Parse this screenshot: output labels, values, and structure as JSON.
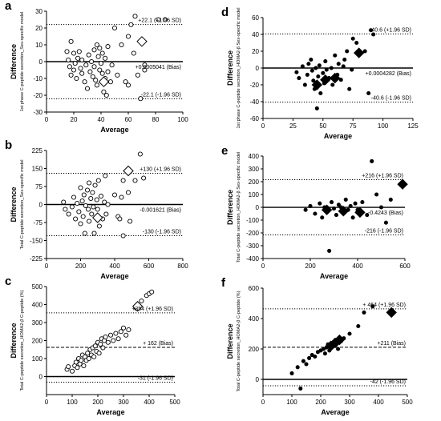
{
  "chart_data": [
    {
      "panel": "a",
      "type": "scatter",
      "xlabel": "Average",
      "ylabel_main": "Difference",
      "ylabel_sub": "1st phase C-peptide secretion_Sex-specific model",
      "xlim": [
        0,
        100
      ],
      "ylim": [
        -30,
        30
      ],
      "xticks": [
        "0",
        "20",
        "40",
        "60",
        "80",
        "100"
      ],
      "yticks": [
        "-30",
        "-20",
        "-10",
        "0",
        "10",
        "20",
        "30"
      ],
      "xtick_values": [
        0,
        20,
        40,
        60,
        80,
        100
      ],
      "ytick_values": [
        -30,
        -20,
        -10,
        0,
        10,
        20,
        30
      ],
      "marker": "open",
      "ref_lines": [
        {
          "y": 22.1,
          "style": "dotted",
          "label": "+22.1 (+1.96 SD)"
        },
        {
          "y": 0.0005041,
          "style": "solid",
          "label": "+0.0005041 (Bias)"
        },
        {
          "y": -22.1,
          "style": "dotted",
          "label": "-22.1 (-1.96 SD)"
        }
      ],
      "points": [
        [
          15,
          6
        ],
        [
          16,
          1
        ],
        [
          17,
          -3
        ],
        [
          18,
          -8
        ],
        [
          18,
          12
        ],
        [
          20,
          5
        ],
        [
          20,
          -5
        ],
        [
          21,
          -1
        ],
        [
          22,
          -10
        ],
        [
          23,
          2
        ],
        [
          24,
          6
        ],
        [
          25,
          -4
        ],
        [
          26,
          -7
        ],
        [
          26,
          1
        ],
        [
          28,
          -12
        ],
        [
          29,
          -2
        ],
        [
          30,
          -16
        ],
        [
          31,
          4
        ],
        [
          32,
          -6
        ],
        [
          33,
          0
        ],
        [
          34,
          -9
        ],
        [
          35,
          7
        ],
        [
          35,
          -3
        ],
        [
          36,
          -11
        ],
        [
          37,
          10
        ],
        [
          37,
          -14
        ],
        [
          38,
          3
        ],
        [
          39,
          -5
        ],
        [
          39,
          8
        ],
        [
          40,
          -1
        ],
        [
          41,
          -7
        ],
        [
          41,
          5
        ],
        [
          42,
          -18
        ],
        [
          43,
          -10
        ],
        [
          44,
          -20
        ],
        [
          43,
          2
        ],
        [
          45,
          9
        ],
        [
          45,
          -6
        ],
        [
          47,
          -12
        ],
        [
          48,
          -2
        ],
        [
          50,
          20
        ],
        [
          52,
          -8
        ],
        [
          55,
          10
        ],
        [
          58,
          -12
        ],
        [
          60,
          -14
        ],
        [
          60,
          15
        ],
        [
          62,
          22
        ],
        [
          64,
          5
        ],
        [
          65,
          27
        ],
        [
          67,
          -8
        ],
        [
          69,
          -22
        ],
        [
          72,
          -5
        ],
        [
          72,
          -2
        ],
        [
          82,
          25
        ],
        [
          87,
          25
        ]
      ],
      "highlights": [
        [
          42,
          -12
        ],
        [
          70,
          12
        ]
      ]
    },
    {
      "panel": "b",
      "type": "scatter",
      "xlabel": "Average",
      "ylabel_main": "Difference",
      "ylabel_sub": "Total C-peptide secretion_Sex-specific model",
      "xlim": [
        0,
        800
      ],
      "ylim": [
        -225,
        225
      ],
      "xticks": [
        "0",
        "200",
        "400",
        "600",
        "800"
      ],
      "yticks": [
        "-225",
        "-150",
        "-75",
        "0",
        "75",
        "150",
        "225"
      ],
      "xtick_values": [
        0,
        200,
        400,
        600,
        800
      ],
      "ytick_values": [
        -225,
        -150,
        -75,
        0,
        75,
        150,
        225
      ],
      "marker": "open",
      "ref_lines": [
        {
          "y": 130,
          "style": "dotted",
          "label": "+130 (+1.96 SD)"
        },
        {
          "y": -0.001621,
          "style": "solid",
          "label": "-0.001621 (Bias)"
        },
        {
          "y": -130,
          "style": "dotted",
          "label": "-130 (-1.96 SD)"
        }
      ],
      "points": [
        [
          100,
          10
        ],
        [
          110,
          -20
        ],
        [
          130,
          -40
        ],
        [
          150,
          -10
        ],
        [
          160,
          30
        ],
        [
          170,
          -60
        ],
        [
          180,
          5
        ],
        [
          190,
          -30
        ],
        [
          200,
          70
        ],
        [
          200,
          -80
        ],
        [
          210,
          15
        ],
        [
          215,
          -50
        ],
        [
          220,
          40
        ],
        [
          225,
          -120
        ],
        [
          230,
          -5
        ],
        [
          240,
          60
        ],
        [
          245,
          -20
        ],
        [
          250,
          90
        ],
        [
          250,
          -70
        ],
        [
          260,
          25
        ],
        [
          265,
          -40
        ],
        [
          270,
          50
        ],
        [
          275,
          -10
        ],
        [
          280,
          -120
        ],
        [
          285,
          80
        ],
        [
          290,
          -55
        ],
        [
          295,
          20
        ],
        [
          300,
          -20
        ],
        [
          305,
          100
        ],
        [
          310,
          -90
        ],
        [
          320,
          35
        ],
        [
          330,
          -60
        ],
        [
          340,
          10
        ],
        [
          345,
          120
        ],
        [
          350,
          -40
        ],
        [
          360,
          0
        ],
        [
          400,
          40
        ],
        [
          420,
          -50
        ],
        [
          430,
          -60
        ],
        [
          440,
          30
        ],
        [
          450,
          100
        ],
        [
          480,
          50
        ],
        [
          490,
          -70
        ],
        [
          520,
          100
        ],
        [
          550,
          210
        ],
        [
          570,
          110
        ],
        [
          450,
          -130
        ]
      ],
      "highlights": [
        [
          300,
          -55
        ],
        [
          480,
          140
        ]
      ]
    },
    {
      "panel": "c",
      "type": "scatter",
      "xlabel": "Average",
      "ylabel_main": "Difference",
      "ylabel_sub": "Total C-peptide secretion_HOMA2-β C-peptide (%)",
      "xlim": [
        0,
        500
      ],
      "ylim": [
        -100,
        500
      ],
      "xticks": [
        "0",
        "100",
        "200",
        "300",
        "400",
        "500"
      ],
      "yticks": [
        "0",
        "100",
        "200",
        "300",
        "400",
        "500"
      ],
      "xtick_values": [
        0,
        100,
        200,
        300,
        400,
        500
      ],
      "ytick_values": [
        0,
        100,
        200,
        300,
        400,
        500
      ],
      "marker": "open",
      "ref_lines": [
        {
          "y": 354,
          "style": "dotted",
          "label": "+354 (+1.96 SD)"
        },
        {
          "y": 162,
          "style": "dashed",
          "label": "+ 162 (Bias)"
        },
        {
          "y": 0,
          "style": "solid",
          "label": ""
        },
        {
          "y": -31,
          "style": "dotted",
          "label": "-31 (-1.96 SD)"
        }
      ],
      "points": [
        [
          80,
          40
        ],
        [
          85,
          55
        ],
        [
          100,
          30
        ],
        [
          110,
          60
        ],
        [
          115,
          80
        ],
        [
          120,
          50
        ],
        [
          125,
          100
        ],
        [
          130,
          70
        ],
        [
          135,
          90
        ],
        [
          140,
          120
        ],
        [
          145,
          60
        ],
        [
          150,
          110
        ],
        [
          155,
          90
        ],
        [
          160,
          130
        ],
        [
          165,
          100
        ],
        [
          170,
          150
        ],
        [
          175,
          120
        ],
        [
          180,
          160
        ],
        [
          185,
          110
        ],
        [
          190,
          170
        ],
        [
          195,
          140
        ],
        [
          200,
          190
        ],
        [
          205,
          130
        ],
        [
          210,
          180
        ],
        [
          215,
          210
        ],
        [
          220,
          160
        ],
        [
          225,
          200
        ],
        [
          230,
          220
        ],
        [
          240,
          190
        ],
        [
          250,
          230
        ],
        [
          260,
          200
        ],
        [
          270,
          240
        ],
        [
          280,
          210
        ],
        [
          290,
          250
        ],
        [
          300,
          270
        ],
        [
          310,
          230
        ],
        [
          320,
          260
        ],
        [
          350,
          380
        ],
        [
          370,
          420
        ],
        [
          390,
          450
        ],
        [
          400,
          460
        ],
        [
          410,
          470
        ]
      ],
      "highlights": [
        [
          355,
          390
        ]
      ]
    },
    {
      "panel": "d",
      "type": "scatter",
      "xlabel": "Average",
      "ylabel_main": "Difference",
      "ylabel_sub": "1st phase C-peptide secretion_HOMA2-β Sex-specific model",
      "xlim": [
        0,
        125
      ],
      "ylim": [
        -60,
        60
      ],
      "xticks": [
        "0",
        "25",
        "50",
        "75",
        "100",
        "125"
      ],
      "yticks": [
        "-60",
        "-40",
        "-20",
        "0",
        "20",
        "40",
        "60"
      ],
      "xtick_values": [
        0,
        25,
        50,
        75,
        100,
        125
      ],
      "ytick_values": [
        -60,
        -40,
        -20,
        0,
        20,
        40,
        60
      ],
      "marker": "filled",
      "ref_lines": [
        {
          "y": 40.6,
          "style": "dotted",
          "label": "+40.6 (+1.96 SD)"
        },
        {
          "y": 0.0004282,
          "style": "solid",
          "label": "+0.0004282 (Bias)"
        },
        {
          "y": -40.6,
          "style": "dotted",
          "label": "-40.6 (-1.96 SD)"
        }
      ],
      "points": [
        [
          28,
          -5
        ],
        [
          30,
          -12
        ],
        [
          33,
          2
        ],
        [
          35,
          -20
        ],
        [
          37,
          -8
        ],
        [
          38,
          5
        ],
        [
          40,
          10
        ],
        [
          41,
          -3
        ],
        [
          42,
          -15
        ],
        [
          43,
          -25
        ],
        [
          44,
          0
        ],
        [
          45,
          -48
        ],
        [
          46,
          -10
        ],
        [
          47,
          3
        ],
        [
          48,
          -30
        ],
        [
          50,
          -6
        ],
        [
          51,
          -18
        ],
        [
          52,
          8
        ],
        [
          53,
          -2
        ],
        [
          55,
          -12
        ],
        [
          57,
          0
        ],
        [
          58,
          -20
        ],
        [
          60,
          15
        ],
        [
          62,
          -8
        ],
        [
          63,
          5
        ],
        [
          65,
          -14
        ],
        [
          67,
          2
        ],
        [
          68,
          10
        ],
        [
          70,
          20
        ],
        [
          72,
          -25
        ],
        [
          74,
          -2
        ],
        [
          75,
          35
        ],
        [
          78,
          30
        ],
        [
          85,
          20
        ],
        [
          90,
          45
        ],
        [
          92,
          40
        ],
        [
          88,
          -30
        ]
      ],
      "highlights": [
        [
          45,
          -20
        ],
        [
          52,
          -14
        ],
        [
          60,
          -12
        ],
        [
          80,
          18
        ]
      ]
    },
    {
      "panel": "e",
      "type": "scatter",
      "xlabel": "Average",
      "ylabel_main": "Difference",
      "ylabel_sub": "Total C-peptide secretion_HOMA2-β Sex-specific model",
      "xlim": [
        0,
        600
      ],
      "ylim": [
        -400,
        400
      ],
      "xticks": [
        "0",
        "200",
        "400",
        "600"
      ],
      "yticks": [
        "-400",
        "-300",
        "-200",
        "-100",
        "0",
        "100",
        "200",
        "300",
        "400"
      ],
      "xtick_values": [
        0,
        200,
        400,
        600
      ],
      "ytick_values": [
        -400,
        -300,
        -200,
        -100,
        0,
        100,
        200,
        300,
        400
      ],
      "marker": "filled",
      "ref_lines": [
        {
          "y": 216,
          "style": "dotted",
          "label": "+216 (+1.96 SD)"
        },
        {
          "y": -0.4243,
          "style": "solid",
          "label": "-0.4243 (Bias)"
        },
        {
          "y": -216,
          "style": "dotted",
          "label": "-216 (-1.96 SD)"
        }
      ],
      "points": [
        [
          180,
          -20
        ],
        [
          200,
          10
        ],
        [
          220,
          -50
        ],
        [
          240,
          30
        ],
        [
          250,
          -80
        ],
        [
          260,
          0
        ],
        [
          270,
          -30
        ],
        [
          280,
          -340
        ],
        [
          290,
          40
        ],
        [
          300,
          -10
        ],
        [
          310,
          -60
        ],
        [
          320,
          20
        ],
        [
          330,
          0
        ],
        [
          340,
          -40
        ],
        [
          350,
          60
        ],
        [
          360,
          -20
        ],
        [
          370,
          10
        ],
        [
          380,
          -80
        ],
        [
          390,
          30
        ],
        [
          400,
          -20
        ],
        [
          420,
          40
        ],
        [
          440,
          -60
        ],
        [
          460,
          360
        ],
        [
          480,
          100
        ],
        [
          500,
          0
        ],
        [
          520,
          -120
        ],
        [
          540,
          60
        ]
      ],
      "highlights": [
        [
          270,
          -20
        ],
        [
          340,
          -30
        ],
        [
          410,
          -40
        ],
        [
          590,
          180
        ]
      ]
    },
    {
      "panel": "f",
      "type": "scatter",
      "xlabel": "Average",
      "ylabel_main": "Difference",
      "ylabel_sub": "Total C-peptide secretion_HOMA2-β C-peptide (%)",
      "xlim": [
        0,
        500
      ],
      "ylim": [
        -100,
        600
      ],
      "xticks": [
        "0",
        "100",
        "200",
        "300",
        "400",
        "500"
      ],
      "yticks": [
        "0",
        "200",
        "400",
        "600"
      ],
      "xtick_values": [
        0,
        100,
        200,
        300,
        400,
        500
      ],
      "ytick_values": [
        0,
        200,
        400,
        600
      ],
      "marker": "filled",
      "ref_lines": [
        {
          "y": 464,
          "style": "dotted",
          "label": "+ 464 (+1.96 SD)"
        },
        {
          "y": 211,
          "style": "dashed",
          "label": "+211 (Bias)"
        },
        {
          "y": 0,
          "style": "solid",
          "label": ""
        },
        {
          "y": -42,
          "style": "dotted",
          "label": "-42 (-1.96 SD)"
        }
      ],
      "points": [
        [
          100,
          40
        ],
        [
          120,
          80
        ],
        [
          130,
          -60
        ],
        [
          140,
          120
        ],
        [
          150,
          100
        ],
        [
          160,
          140
        ],
        [
          170,
          160
        ],
        [
          180,
          150
        ],
        [
          190,
          180
        ],
        [
          200,
          190
        ],
        [
          210,
          200
        ],
        [
          215,
          170
        ],
        [
          220,
          210
        ],
        [
          225,
          230
        ],
        [
          230,
          190
        ],
        [
          240,
          220
        ],
        [
          250,
          240
        ],
        [
          260,
          200
        ],
        [
          270,
          250
        ],
        [
          280,
          270
        ],
        [
          300,
          300
        ],
        [
          330,
          350
        ],
        [
          350,
          440
        ],
        [
          380,
          480
        ]
      ],
      "highlights": [
        [
          235,
          220
        ],
        [
          250,
          240
        ],
        [
          265,
          260
        ],
        [
          445,
          440
        ]
      ]
    }
  ]
}
